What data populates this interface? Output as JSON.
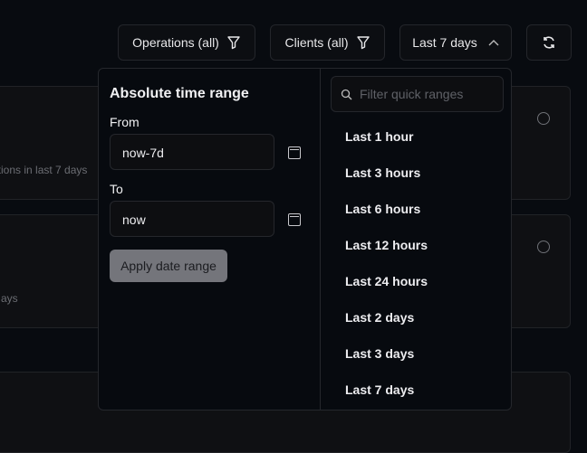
{
  "toolbar": {
    "operations": "Operations (all)",
    "clients": "Clients (all)",
    "range": "Last 7 days"
  },
  "cards": [
    {
      "subtitle": "ations in last 7 days",
      "status_icon": "smile-icon"
    },
    {
      "subtitle": "ays",
      "status_icon": "frown-icon"
    }
  ],
  "picker": {
    "title": "Absolute time range",
    "from_label": "From",
    "from_value": "now-7d",
    "to_label": "To",
    "to_value": "now",
    "apply": "Apply date range",
    "search_placeholder": "Filter quick ranges",
    "quick_ranges": [
      "Last 1 hour",
      "Last 3 hours",
      "Last 6 hours",
      "Last 12 hours",
      "Last 24 hours",
      "Last 2 days",
      "Last 3 days",
      "Last 7 days"
    ]
  }
}
